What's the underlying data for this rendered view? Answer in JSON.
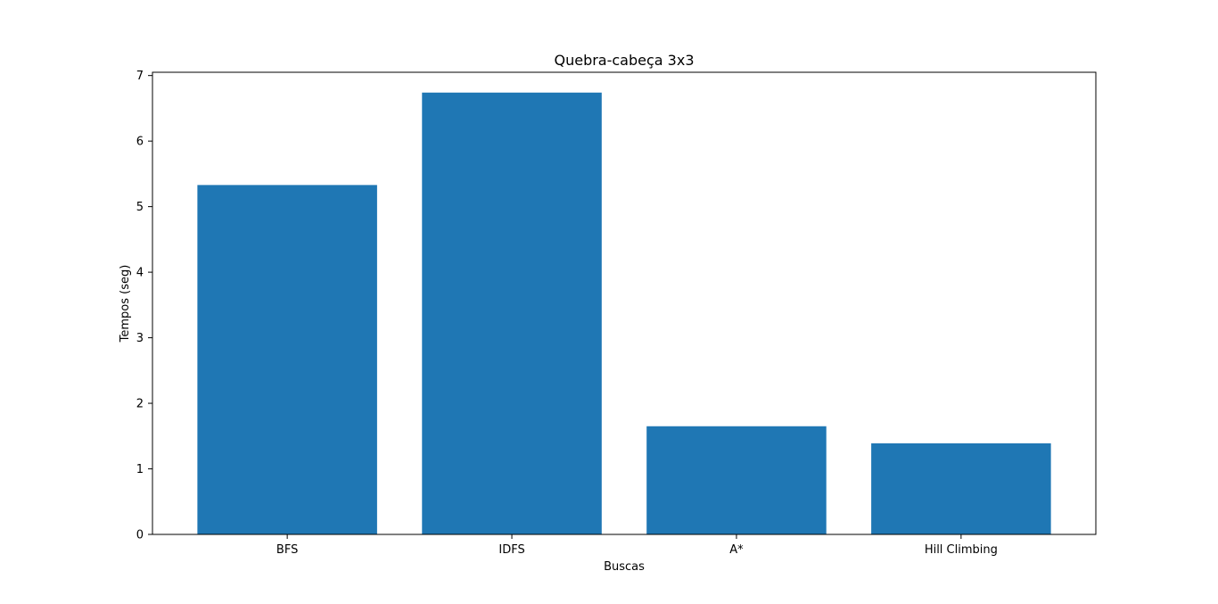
{
  "chart_data": {
    "type": "bar",
    "title": "Quebra-cabeça 3x3",
    "xlabel": "Buscas",
    "ylabel": "Tempos (seg)",
    "categories": [
      "BFS",
      "IDFS",
      "A*",
      "Hill Climbing"
    ],
    "values": [
      5.33,
      6.74,
      1.65,
      1.39
    ],
    "ylim": [
      0,
      7.05
    ],
    "yticks": [
      "0",
      "1",
      "2",
      "3",
      "4",
      "5",
      "6",
      "7"
    ],
    "grid": false,
    "bar_color": "#1f77b4"
  }
}
